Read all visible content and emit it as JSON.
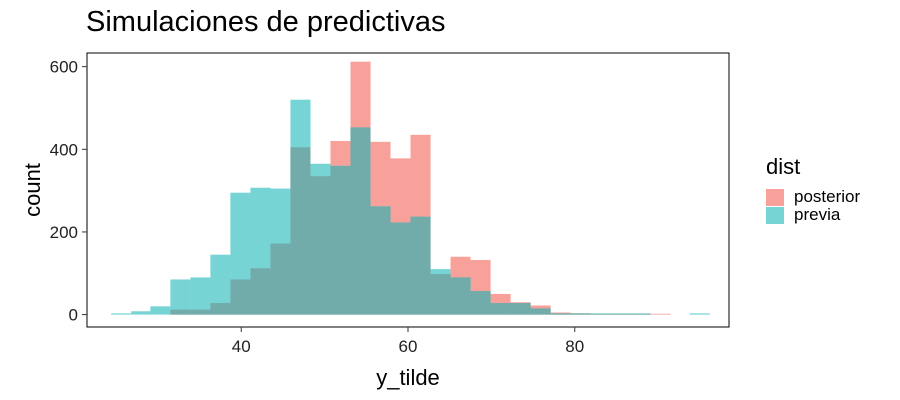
{
  "chart_data": {
    "type": "histogram",
    "title": "Simulaciones de predictivas",
    "xlabel": "y_tilde",
    "ylabel": "count",
    "xlim": [
      21.5,
      98.5
    ],
    "ylim": [
      -30,
      633
    ],
    "xticks": [
      40,
      60,
      80
    ],
    "yticks": [
      0,
      200,
      400,
      600
    ],
    "bin_width": 2.37,
    "overlap_color": "#72ACAA",
    "legend": {
      "title": "dist",
      "position": "right"
    },
    "series": [
      {
        "name": "posterior",
        "color": "#F8A09A",
        "bins": [
          {
            "x0": 31.5,
            "count": 12
          },
          {
            "x0": 33.9,
            "count": 12
          },
          {
            "x0": 36.3,
            "count": 28
          },
          {
            "x0": 38.7,
            "count": 85
          },
          {
            "x0": 41.1,
            "count": 112
          },
          {
            "x0": 43.5,
            "count": 172
          },
          {
            "x0": 45.9,
            "count": 405
          },
          {
            "x0": 48.3,
            "count": 335
          },
          {
            "x0": 50.7,
            "count": 420
          },
          {
            "x0": 53.1,
            "count": 612
          },
          {
            "x0": 55.5,
            "count": 418
          },
          {
            "x0": 57.9,
            "count": 378
          },
          {
            "x0": 60.3,
            "count": 435
          },
          {
            "x0": 62.7,
            "count": 98
          },
          {
            "x0": 65.1,
            "count": 140
          },
          {
            "x0": 67.5,
            "count": 132
          },
          {
            "x0": 69.9,
            "count": 50
          },
          {
            "x0": 72.3,
            "count": 30
          },
          {
            "x0": 74.7,
            "count": 22
          },
          {
            "x0": 77.1,
            "count": 5
          },
          {
            "x0": 79.5,
            "count": 3
          },
          {
            "x0": 81.9,
            "count": 2
          },
          {
            "x0": 84.3,
            "count": 2
          },
          {
            "x0": 86.7,
            "count": 2
          },
          {
            "x0": 89.1,
            "count": 2
          }
        ]
      },
      {
        "name": "previa",
        "color": "#76D4D5",
        "bins": [
          {
            "x0": 24.4,
            "count": 3
          },
          {
            "x0": 26.8,
            "count": 8
          },
          {
            "x0": 29.1,
            "count": 20
          },
          {
            "x0": 31.5,
            "count": 85
          },
          {
            "x0": 33.9,
            "count": 90
          },
          {
            "x0": 36.3,
            "count": 145
          },
          {
            "x0": 38.7,
            "count": 295
          },
          {
            "x0": 41.1,
            "count": 307
          },
          {
            "x0": 43.5,
            "count": 305
          },
          {
            "x0": 45.9,
            "count": 520
          },
          {
            "x0": 48.3,
            "count": 365
          },
          {
            "x0": 50.7,
            "count": 360
          },
          {
            "x0": 53.1,
            "count": 453
          },
          {
            "x0": 55.5,
            "count": 262
          },
          {
            "x0": 57.9,
            "count": 223
          },
          {
            "x0": 60.3,
            "count": 237
          },
          {
            "x0": 62.7,
            "count": 110
          },
          {
            "x0": 65.1,
            "count": 90
          },
          {
            "x0": 67.5,
            "count": 57
          },
          {
            "x0": 69.9,
            "count": 28
          },
          {
            "x0": 72.3,
            "count": 28
          },
          {
            "x0": 74.7,
            "count": 15
          },
          {
            "x0": 77.1,
            "count": 3
          },
          {
            "x0": 79.5,
            "count": 3
          },
          {
            "x0": 81.9,
            "count": 3
          },
          {
            "x0": 84.3,
            "count": 3
          },
          {
            "x0": 86.7,
            "count": 3
          },
          {
            "x0": 93.8,
            "count": 3
          }
        ]
      }
    ]
  }
}
